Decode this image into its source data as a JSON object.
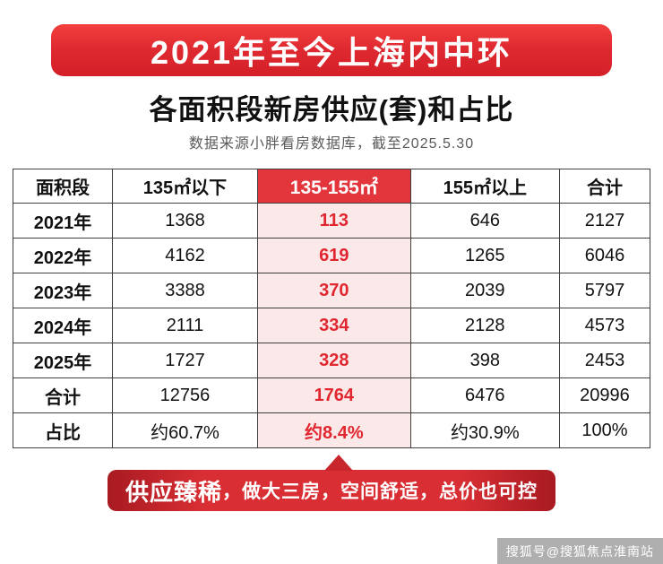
{
  "colors": {
    "ribbon_red": "#e02a31",
    "highlight_header_red": "#e3353c",
    "highlight_cell_pink": "#fbe9ea",
    "highlight_text_red": "#e0262e",
    "banner_red": "#d92f34"
  },
  "header": {
    "ribbon_title": "2021年至今上海内中环",
    "title": "各面积段新房供应(套)和占比",
    "subtitle": "数据来源小胖看房数据库，截至2025.5.30"
  },
  "table": {
    "headers": [
      "面积段",
      "135㎡以下",
      "135-155㎡",
      "155㎡以上",
      "合计"
    ],
    "rows": [
      {
        "label": "2021年",
        "values": [
          "1368",
          "113",
          "646",
          "2127"
        ]
      },
      {
        "label": "2022年",
        "values": [
          "4162",
          "619",
          "1265",
          "6046"
        ]
      },
      {
        "label": "2023年",
        "values": [
          "3388",
          "370",
          "2039",
          "5797"
        ]
      },
      {
        "label": "2024年",
        "values": [
          "2111",
          "334",
          "2128",
          "4573"
        ]
      },
      {
        "label": "2025年",
        "values": [
          "1727",
          "328",
          "398",
          "2453"
        ]
      },
      {
        "label": "合计",
        "values": [
          "12756",
          "1764",
          "6476",
          "20996"
        ]
      },
      {
        "label": "占比",
        "values": [
          "约60.7%",
          "约8.4%",
          "约30.9%",
          "100%"
        ]
      }
    ]
  },
  "callout": {
    "highlight": "供应臻稀",
    "rest": "，做大三房，空间舒适，总价也可控"
  },
  "watermark": "搜狐号@搜狐焦点淮南站",
  "chart_data": {
    "type": "table",
    "title": "各面积段新房供应(套)和占比",
    "subtitle": "2021年至今上海内中环 · 数据来源小胖看房数据库，截至2025.5.30",
    "columns": [
      "面积段",
      "135㎡以下",
      "135-155㎡",
      "155㎡以上",
      "合计"
    ],
    "rows": [
      [
        "2021年",
        1368,
        113,
        646,
        2127
      ],
      [
        "2022年",
        4162,
        619,
        1265,
        6046
      ],
      [
        "2023年",
        3388,
        370,
        2039,
        5797
      ],
      [
        "2024年",
        2111,
        334,
        2128,
        4573
      ],
      [
        "2025年",
        1727,
        328,
        398,
        2453
      ],
      [
        "合计",
        12756,
        1764,
        6476,
        20996
      ],
      [
        "占比",
        "约60.7%",
        "约8.4%",
        "约30.9%",
        "100%"
      ]
    ],
    "highlighted_column": "135-155㎡",
    "annotation": "供应臻稀，做大三房，空间舒适，总价也可控"
  }
}
